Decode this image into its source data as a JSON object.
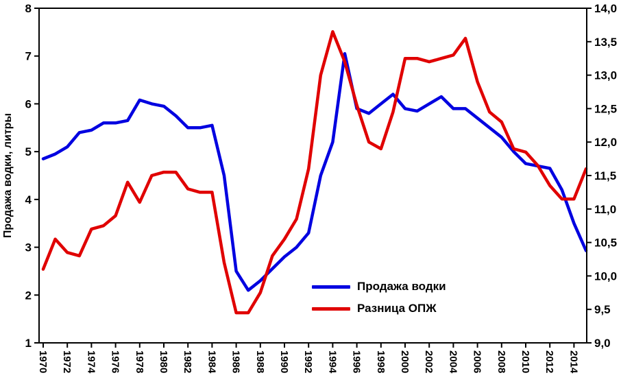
{
  "chart_data": {
    "type": "line",
    "title": "",
    "ylabel": "Продажа водки, литры",
    "x": [
      1970,
      1971,
      1972,
      1973,
      1974,
      1975,
      1976,
      1977,
      1978,
      1979,
      1980,
      1981,
      1982,
      1983,
      1984,
      1985,
      1986,
      1987,
      1988,
      1989,
      1990,
      1991,
      1992,
      1993,
      1994,
      1995,
      1996,
      1997,
      1998,
      1999,
      2000,
      2001,
      2002,
      2003,
      2004,
      2005,
      2006,
      2007,
      2008,
      2009,
      2010,
      2011,
      2012,
      2013,
      2014,
      2015
    ],
    "x_tick_interval": 2,
    "axes": {
      "left": {
        "min": 1,
        "max": 8,
        "tick_step": 1,
        "decimal_comma": false
      },
      "right": {
        "min": 9,
        "max": 14,
        "tick_step": 0.5,
        "decimal_comma": true
      },
      "x": {
        "min": 1970,
        "max": 2015
      }
    },
    "grid": false,
    "legend_position": "inside-bottom-center",
    "series": [
      {
        "name": "Продажа водки",
        "axis": "left",
        "color": "#0000e0",
        "values": [
          4.85,
          4.95,
          5.1,
          5.4,
          5.45,
          5.6,
          5.6,
          5.65,
          6.08,
          6.0,
          5.95,
          5.75,
          5.5,
          5.5,
          5.55,
          4.5,
          2.5,
          2.1,
          2.3,
          2.55,
          2.8,
          3.0,
          3.3,
          4.5,
          5.2,
          7.05,
          5.9,
          5.8,
          6.0,
          6.2,
          5.9,
          5.85,
          6.0,
          6.15,
          5.9,
          5.9,
          5.7,
          5.5,
          5.3,
          5.0,
          4.75,
          4.7,
          4.65,
          4.2,
          3.5,
          2.93
        ]
      },
      {
        "name": "Разница ОПЖ",
        "axis": "right",
        "color": "#e00000",
        "values": [
          10.1,
          10.55,
          10.35,
          10.3,
          10.7,
          10.75,
          10.9,
          11.4,
          11.1,
          11.5,
          11.55,
          11.55,
          11.3,
          11.25,
          11.25,
          10.2,
          9.45,
          9.45,
          9.75,
          10.3,
          10.55,
          10.85,
          11.6,
          13.0,
          13.65,
          13.2,
          12.55,
          12.0,
          11.9,
          12.45,
          13.25,
          13.25,
          13.2,
          13.25,
          13.3,
          13.55,
          12.9,
          12.45,
          12.3,
          11.9,
          11.85,
          11.65,
          11.35,
          11.15,
          11.15,
          11.6
        ]
      }
    ],
    "frame_color": "#000000"
  }
}
